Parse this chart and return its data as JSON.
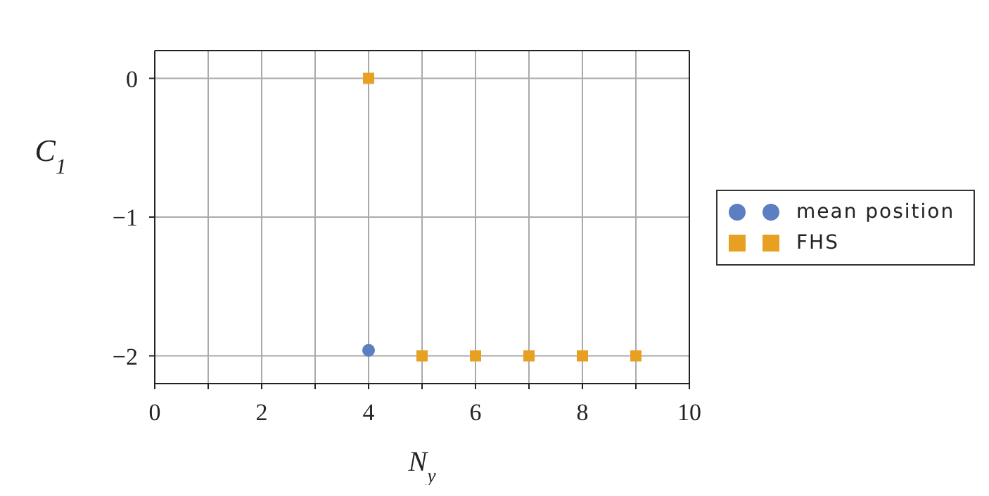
{
  "chart_data": {
    "type": "scatter",
    "xlabel": "N$_{y}$",
    "ylabel": "C$_{1}$",
    "xlim": [
      0,
      10
    ],
    "ylim": [
      -2.2,
      0.2
    ],
    "xticks": [
      0,
      {
        "value": 1,
        "label": null
      },
      2,
      {
        "value": 3,
        "label": null
      },
      4,
      {
        "value": 5,
        "label": null
      },
      6,
      {
        "value": 7,
        "label": null
      },
      8,
      {
        "value": 9,
        "label": null
      },
      10
    ],
    "yticks": [
      -2,
      -1,
      0
    ],
    "grid": true,
    "legend": "right",
    "x": [
      4,
      5,
      6,
      7,
      8,
      9
    ],
    "series": [
      {
        "name": "mean position",
        "color": "#5b7fc0",
        "marker": "circle",
        "values": [
          -1.96,
          null,
          null,
          null,
          null,
          null
        ]
      },
      {
        "name": "FHS",
        "color": "#e8a023",
        "marker": "square",
        "values": [
          0,
          -2,
          -2,
          -2,
          -2,
          -2
        ]
      }
    ]
  }
}
